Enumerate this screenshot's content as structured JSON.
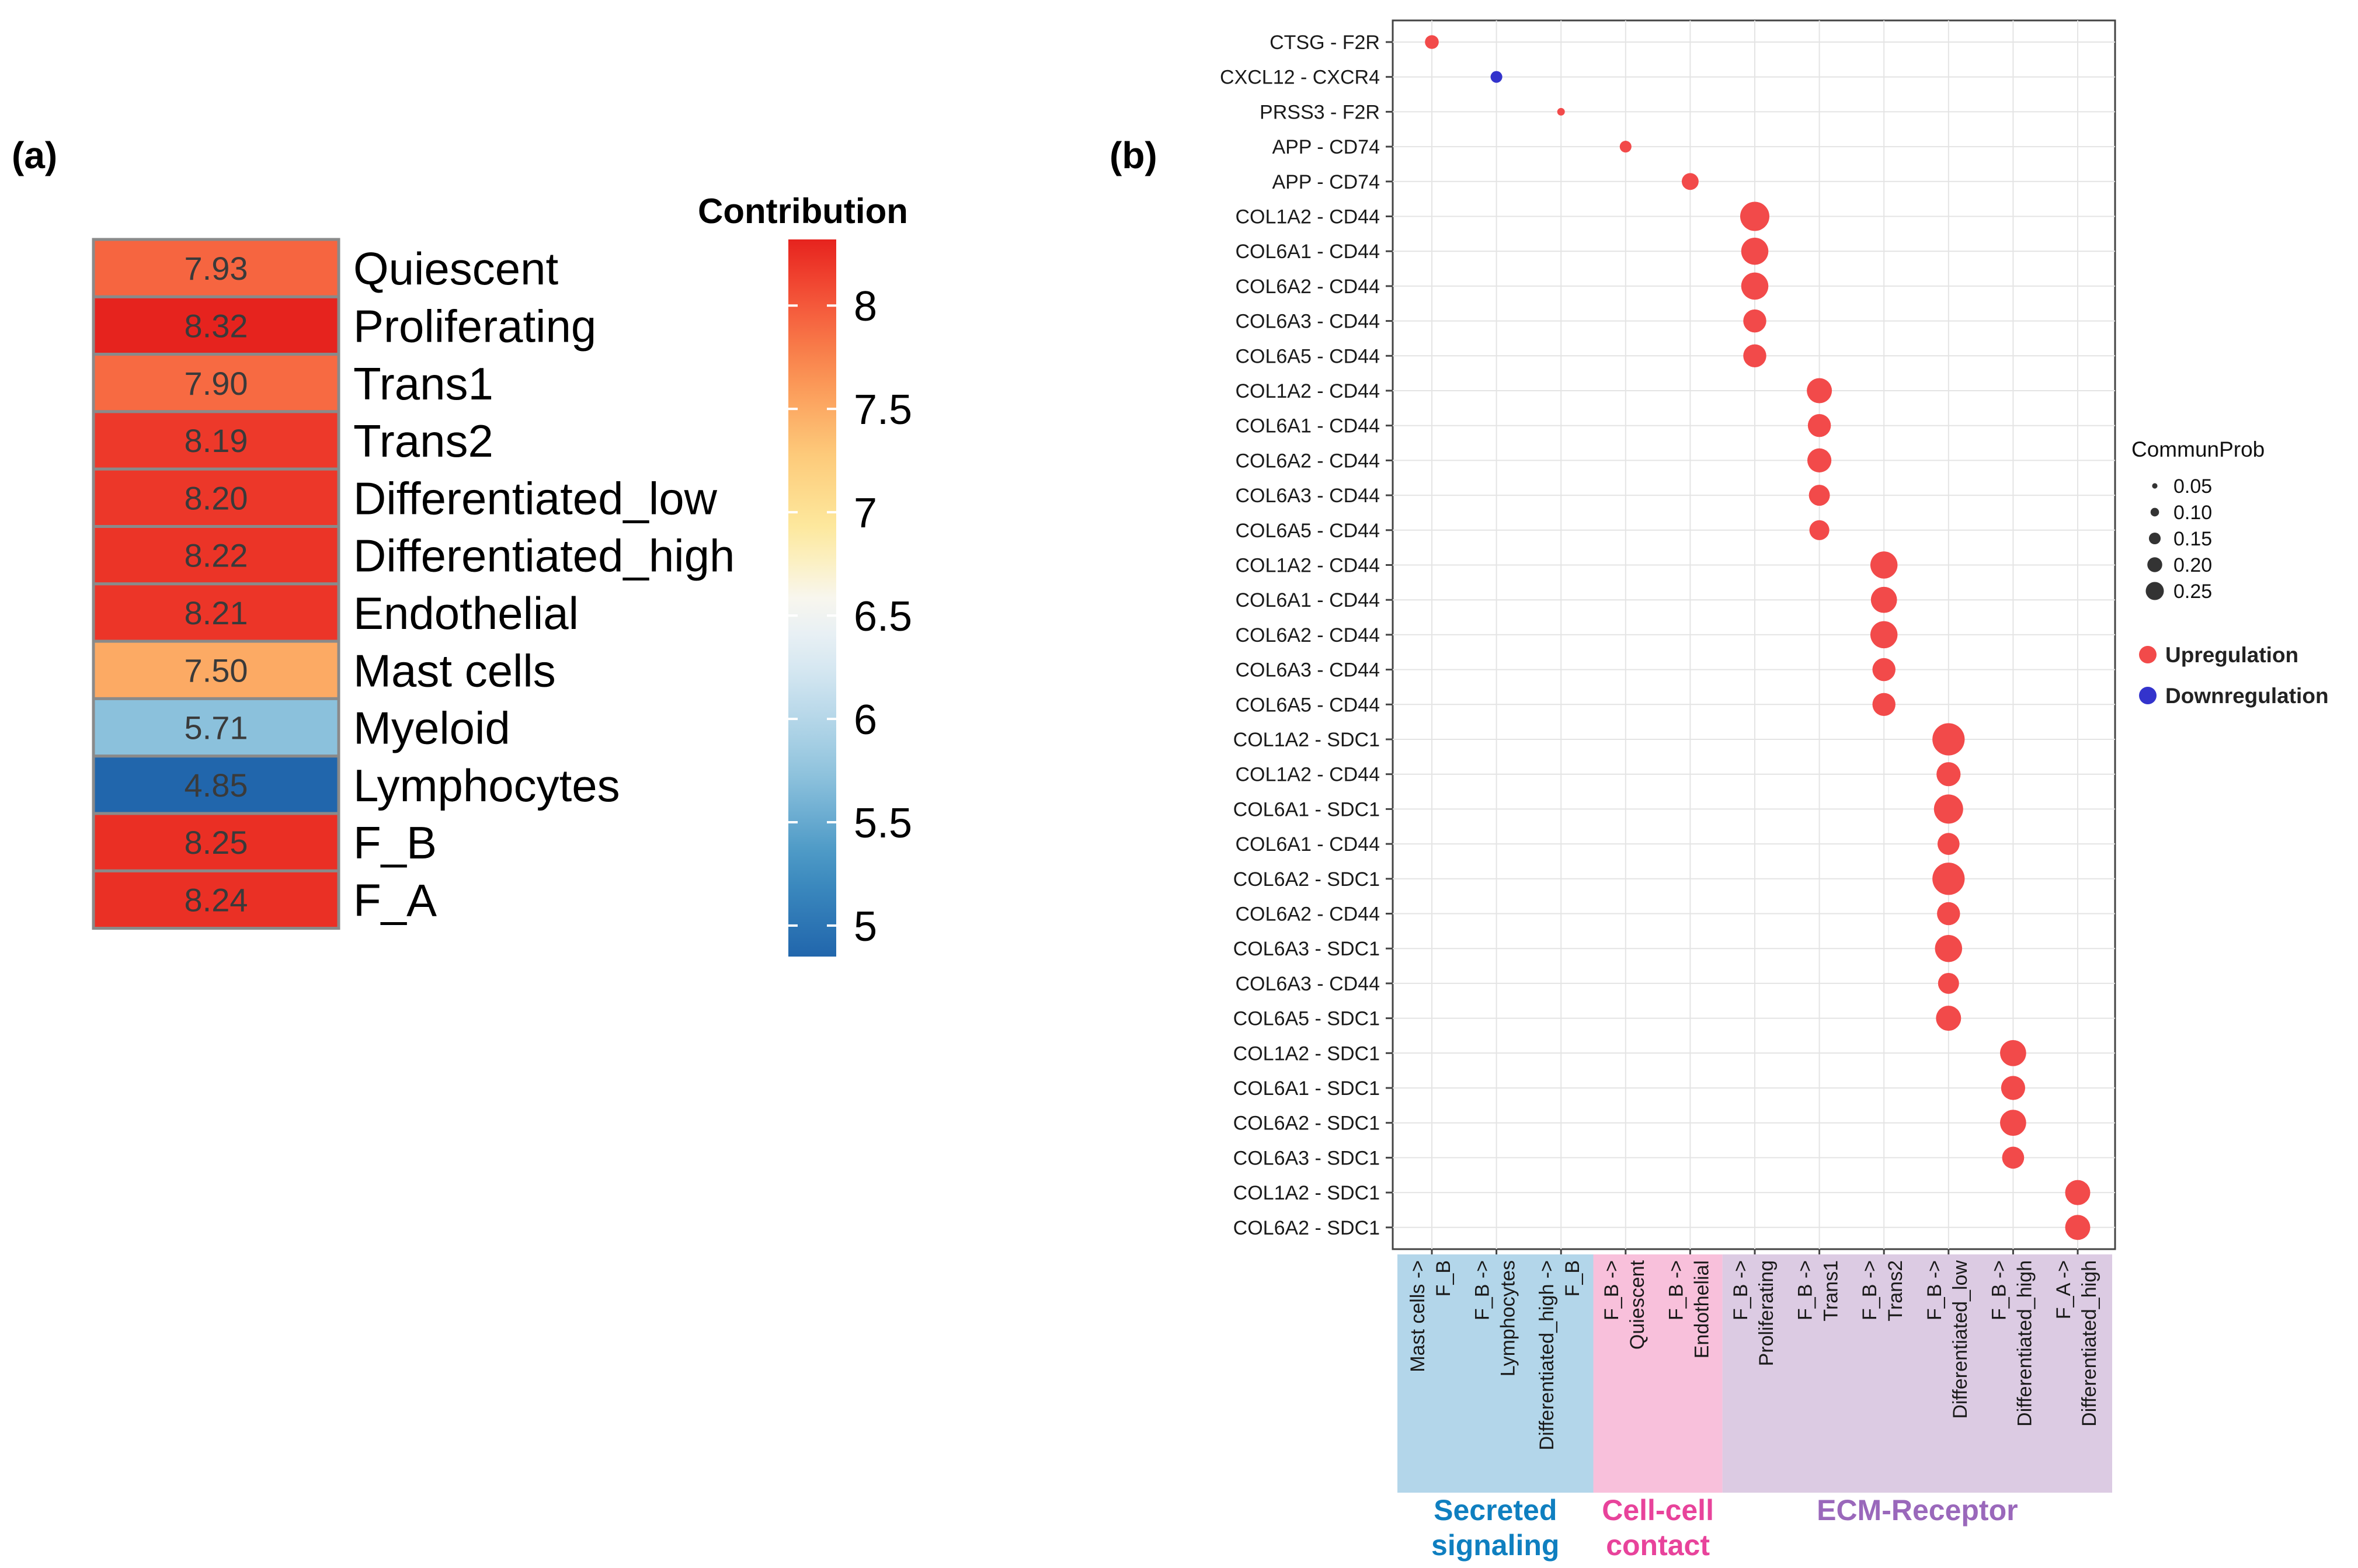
{
  "panel_a": {
    "label": "(a)",
    "legend_title": "Contribution",
    "colorbar_ticks": [
      "8",
      "7.5",
      "7",
      "6.5",
      "6",
      "5.5",
      "5"
    ]
  },
  "panel_b": {
    "label": "(b)",
    "size_legend_title": "CommunProb",
    "size_legend_items": [
      "0.05",
      "0.10",
      "0.15",
      "0.20",
      "0.25"
    ],
    "color_legend_items": [
      {
        "label": "Upregulation",
        "color": "#f24a4a"
      },
      {
        "label": "Downregulation",
        "color": "#3333cc"
      }
    ],
    "groups": [
      {
        "label1": "Secreted",
        "label2": "signaling",
        "color": "#0f7fc0",
        "bg": "#b3d6ea"
      },
      {
        "label1": "Cell-cell",
        "label2": "contact",
        "color": "#e8439b",
        "bg": "#f8c0db"
      },
      {
        "label1": "ECM-Receptor",
        "label2": "",
        "color": "#9a68bb",
        "bg": "#dccbe3"
      }
    ]
  },
  "chart_data": [
    {
      "type": "heatmap",
      "title": "Contribution",
      "rows": [
        "Quiescent",
        "Proliferating",
        "Trans1",
        "Trans2",
        "Differentiated_low",
        "Differentiated_high",
        "Endothelial",
        "Mast cells",
        "Myeloid",
        "Lymphocytes",
        "F_B",
        "F_A"
      ],
      "values": [
        7.93,
        8.32,
        7.9,
        8.19,
        8.2,
        8.22,
        8.21,
        7.5,
        5.71,
        4.85,
        8.25,
        8.24
      ],
      "value_labels": [
        "7.93",
        "8.32",
        "7.90",
        "8.19",
        "8.20",
        "8.22",
        "8.21",
        "7.50",
        "5.71",
        "4.85",
        "8.25",
        "8.24"
      ],
      "color_range": [
        4.85,
        8.32
      ],
      "legend": "right"
    },
    {
      "type": "scatter",
      "xlabel": "",
      "ylabel": "",
      "x_labels": [
        {
          "line1": "Mast cells ->",
          "line2": "F_B"
        },
        {
          "line1": "F_B ->",
          "line2": "Lymphocytes"
        },
        {
          "line1": "Differentiated_high ->",
          "line2": "F_B"
        },
        {
          "line1": "F_B ->",
          "line2": "Quiescent"
        },
        {
          "line1": "F_B ->",
          "line2": "Endothelial"
        },
        {
          "line1": "F_B ->",
          "line2": "Proliferating"
        },
        {
          "line1": "F_B ->",
          "line2": "Trans1"
        },
        {
          "line1": "F_B ->",
          "line2": "Trans2"
        },
        {
          "line1": "F_B ->",
          "line2": "Differentiated_low"
        },
        {
          "line1": "F_B ->",
          "line2": "Differentiated_high"
        },
        {
          "line1": "F_A ->",
          "line2": "Differentiated_high"
        }
      ],
      "x_groups": [
        0,
        0,
        0,
        1,
        1,
        2,
        2,
        2,
        2,
        2,
        2
      ],
      "y_labels": [
        "CTSG - F2R",
        "CXCL12 - CXCR4",
        "PRSS3 - F2R",
        "APP - CD74",
        "APP - CD74",
        "COL1A2 - CD44",
        "COL6A1 - CD44",
        "COL6A2 - CD44",
        "COL6A3 - CD44",
        "COL6A5 - CD44",
        "COL1A2 - CD44",
        "COL6A1 - CD44",
        "COL6A2 - CD44",
        "COL6A3 - CD44",
        "COL6A5 - CD44",
        "COL1A2 - CD44",
        "COL6A1 - CD44",
        "COL6A2 - CD44",
        "COL6A3 - CD44",
        "COL6A5 - CD44",
        "COL1A2 - SDC1",
        "COL1A2 - CD44",
        "COL6A1 - SDC1",
        "COL6A1 - CD44",
        "COL6A2 - SDC1",
        "COL6A2 - CD44",
        "COL6A3 - SDC1",
        "COL6A3 - CD44",
        "COL6A5 - SDC1",
        "COL1A2 - SDC1",
        "COL6A1 - SDC1",
        "COL6A2 - SDC1",
        "COL6A3 - SDC1",
        "COL1A2 - SDC1",
        "COL6A2 - SDC1"
      ],
      "points": [
        {
          "x": 0,
          "y": 0,
          "prob": 0.1,
          "reg": "up"
        },
        {
          "x": 1,
          "y": 1,
          "prob": 0.08,
          "reg": "down"
        },
        {
          "x": 2,
          "y": 2,
          "prob": 0.04,
          "reg": "up"
        },
        {
          "x": 3,
          "y": 3,
          "prob": 0.08,
          "reg": "up"
        },
        {
          "x": 4,
          "y": 4,
          "prob": 0.13,
          "reg": "up"
        },
        {
          "x": 5,
          "y": 5,
          "prob": 0.25,
          "reg": "up"
        },
        {
          "x": 5,
          "y": 6,
          "prob": 0.23,
          "reg": "up"
        },
        {
          "x": 5,
          "y": 7,
          "prob": 0.23,
          "reg": "up"
        },
        {
          "x": 5,
          "y": 8,
          "prob": 0.19,
          "reg": "up"
        },
        {
          "x": 5,
          "y": 9,
          "prob": 0.19,
          "reg": "up"
        },
        {
          "x": 6,
          "y": 10,
          "prob": 0.21,
          "reg": "up"
        },
        {
          "x": 6,
          "y": 11,
          "prob": 0.19,
          "reg": "up"
        },
        {
          "x": 6,
          "y": 12,
          "prob": 0.2,
          "reg": "up"
        },
        {
          "x": 6,
          "y": 13,
          "prob": 0.17,
          "reg": "up"
        },
        {
          "x": 6,
          "y": 14,
          "prob": 0.16,
          "reg": "up"
        },
        {
          "x": 7,
          "y": 15,
          "prob": 0.23,
          "reg": "up"
        },
        {
          "x": 7,
          "y": 16,
          "prob": 0.22,
          "reg": "up"
        },
        {
          "x": 7,
          "y": 17,
          "prob": 0.23,
          "reg": "up"
        },
        {
          "x": 7,
          "y": 18,
          "prob": 0.19,
          "reg": "up"
        },
        {
          "x": 7,
          "y": 19,
          "prob": 0.19,
          "reg": "up"
        },
        {
          "x": 8,
          "y": 20,
          "prob": 0.28,
          "reg": "up"
        },
        {
          "x": 8,
          "y": 21,
          "prob": 0.2,
          "reg": "up"
        },
        {
          "x": 8,
          "y": 22,
          "prob": 0.25,
          "reg": "up"
        },
        {
          "x": 8,
          "y": 23,
          "prob": 0.18,
          "reg": "up"
        },
        {
          "x": 8,
          "y": 24,
          "prob": 0.28,
          "reg": "up"
        },
        {
          "x": 8,
          "y": 25,
          "prob": 0.19,
          "reg": "up"
        },
        {
          "x": 8,
          "y": 26,
          "prob": 0.23,
          "reg": "up"
        },
        {
          "x": 8,
          "y": 27,
          "prob": 0.17,
          "reg": "up"
        },
        {
          "x": 8,
          "y": 28,
          "prob": 0.21,
          "reg": "up"
        },
        {
          "x": 9,
          "y": 29,
          "prob": 0.22,
          "reg": "up"
        },
        {
          "x": 9,
          "y": 30,
          "prob": 0.2,
          "reg": "up"
        },
        {
          "x": 9,
          "y": 31,
          "prob": 0.22,
          "reg": "up"
        },
        {
          "x": 9,
          "y": 32,
          "prob": 0.18,
          "reg": "up"
        },
        {
          "x": 10,
          "y": 33,
          "prob": 0.21,
          "reg": "up"
        },
        {
          "x": 10,
          "y": 34,
          "prob": 0.21,
          "reg": "up"
        }
      ],
      "legend": "right"
    }
  ]
}
